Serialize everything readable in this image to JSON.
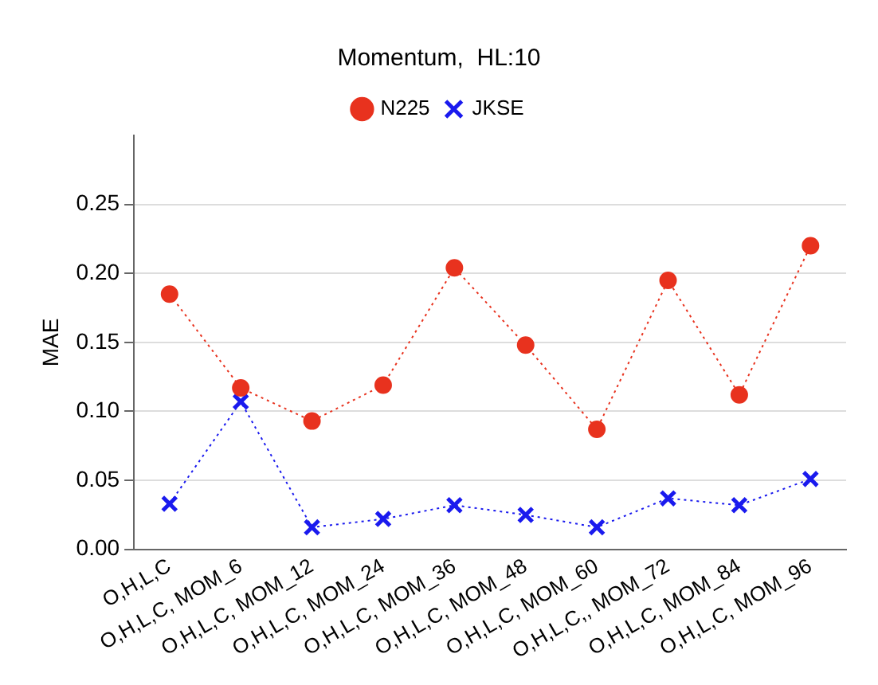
{
  "chart_data": {
    "type": "line",
    "title": "Momentum,  HL:10",
    "ylabel": "MAE",
    "categories": [
      "O,H,L,C",
      "O,H,L,C, MOM_6",
      "O,H,L,C, MOM_12",
      "O,H,L,C, MOM_24",
      "O,H,L,C, MOM_36",
      "O,H,L,C, MOM_48",
      "O,H,L,C, MOM_60",
      "O,H,L,C,, MOM_72",
      "O,H,L,C, MOM_84",
      "O,H,L,C, MOM_96"
    ],
    "series": [
      {
        "name": "N225",
        "color": "#e8321e",
        "marker": "circle",
        "values": [
          0.185,
          0.117,
          0.093,
          0.119,
          0.204,
          0.148,
          0.087,
          0.195,
          0.112,
          0.22
        ]
      },
      {
        "name": "JKSE",
        "color": "#1a1aee",
        "marker": "cross",
        "values": [
          0.033,
          0.107,
          0.016,
          0.022,
          0.032,
          0.025,
          0.016,
          0.037,
          0.032,
          0.051
        ]
      }
    ],
    "ylim": [
      0,
      0.3
    ],
    "yticks": [
      {
        "value": 0,
        "label": "0.00"
      },
      0.05,
      {
        "value": 0.1,
        "label": "0.10"
      },
      0.15,
      {
        "value": 0.2,
        "label": "0.20"
      },
      0.25
    ],
    "grid": "y",
    "legend": "top",
    "line_style": "dotted"
  }
}
